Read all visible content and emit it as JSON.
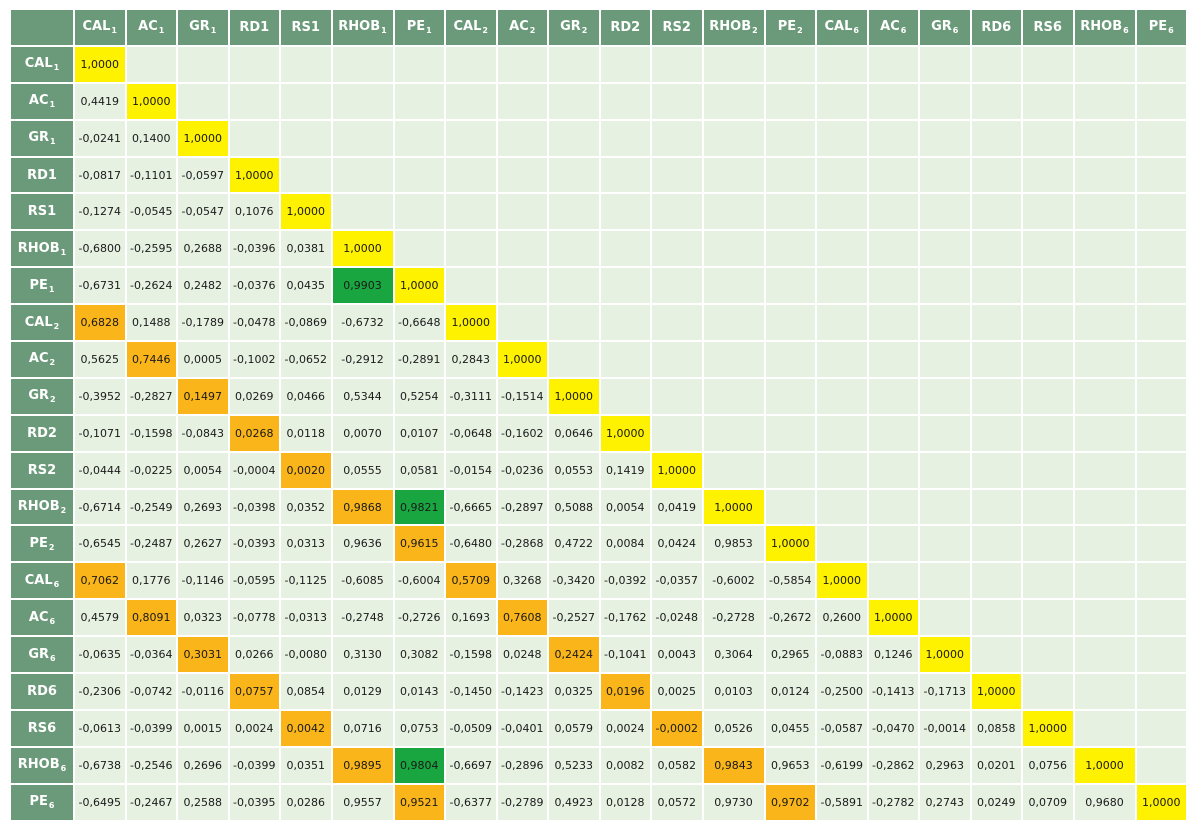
{
  "variables": [
    {
      "base": "CAL",
      "sub": "1"
    },
    {
      "base": "AC",
      "sub": "1"
    },
    {
      "base": "GR",
      "sub": "1"
    },
    {
      "base": "RD1",
      "sub": ""
    },
    {
      "base": "RS1",
      "sub": ""
    },
    {
      "base": "RHOB",
      "sub": "1"
    },
    {
      "base": "PE",
      "sub": "1"
    },
    {
      "base": "CAL",
      "sub": "2"
    },
    {
      "base": "AC",
      "sub": "2"
    },
    {
      "base": "GR",
      "sub": "2"
    },
    {
      "base": "RD2",
      "sub": ""
    },
    {
      "base": "RS2",
      "sub": ""
    },
    {
      "base": "RHOB",
      "sub": "2"
    },
    {
      "base": "PE",
      "sub": "2"
    },
    {
      "base": "CAL",
      "sub": "6"
    },
    {
      "base": "AC",
      "sub": "6"
    },
    {
      "base": "GR",
      "sub": "6"
    },
    {
      "base": "RD6",
      "sub": ""
    },
    {
      "base": "RS6",
      "sub": ""
    },
    {
      "base": "RHOB",
      "sub": "6"
    },
    {
      "base": "PE",
      "sub": "6"
    }
  ],
  "highlight_colors": {
    "yellow": "#fff200",
    "orange": "#f9b51a",
    "green": "#19a641"
  },
  "rows": [
    [
      "1,0000"
    ],
    [
      "0,4419",
      "1,0000"
    ],
    [
      "-0,0241",
      "0,1400",
      "1,0000"
    ],
    [
      "-0,0817",
      "-0,1101",
      "-0,0597",
      "1,0000"
    ],
    [
      "-0,1274",
      "-0,0545",
      "-0,0547",
      "0,1076",
      "1,0000"
    ],
    [
      "-0,6800",
      "-0,2595",
      "0,2688",
      "-0,0396",
      "0,0381",
      "1,0000"
    ],
    [
      "-0,6731",
      "-0,2624",
      "0,2482",
      "-0,0376",
      "0,0435",
      "0,9903",
      "1,0000"
    ],
    [
      "0,6828",
      "0,1488",
      "-0,1789",
      "-0,0478",
      "-0,0869",
      "-0,6732",
      "-0,6648",
      "1,0000"
    ],
    [
      "0,5625",
      "0,7446",
      "0,0005",
      "-0,1002",
      "-0,0652",
      "-0,2912",
      "-0,2891",
      "0,2843",
      "1,0000"
    ],
    [
      "-0,3952",
      "-0,2827",
      "0,1497",
      "0,0269",
      "0,0466",
      "0,5344",
      "0,5254",
      "-0,3111",
      "-0,1514",
      "1,0000"
    ],
    [
      "-0,1071",
      "-0,1598",
      "-0,0843",
      "0,0268",
      "0,0118",
      "0,0070",
      "0,0107",
      "-0,0648",
      "-0,1602",
      "0,0646",
      "1,0000"
    ],
    [
      "-0,0444",
      "-0,0225",
      "0,0054",
      "-0,0004",
      "0,0020",
      "0,0555",
      "0,0581",
      "-0,0154",
      "-0,0236",
      "0,0553",
      "0,1419",
      "1,0000"
    ],
    [
      "-0,6714",
      "-0,2549",
      "0,2693",
      "-0,0398",
      "0,0352",
      "0,9868",
      "0,9821",
      "-0,6665",
      "-0,2897",
      "0,5088",
      "0,0054",
      "0,0419",
      "1,0000"
    ],
    [
      "-0,6545",
      "-0,2487",
      "0,2627",
      "-0,0393",
      "0,0313",
      "0,9636",
      "0,9615",
      "-0,6480",
      "-0,2868",
      "0,4722",
      "0,0084",
      "0,0424",
      "0,9853",
      "1,0000"
    ],
    [
      "0,7062",
      "0,1776",
      "-0,1146",
      "-0,0595",
      "-0,1125",
      "-0,6085",
      "-0,6004",
      "0,5709",
      "0,3268",
      "-0,3420",
      "-0,0392",
      "-0,0357",
      "-0,6002",
      "-0,5854",
      "1,0000"
    ],
    [
      "0,4579",
      "0,8091",
      "0,0323",
      "-0,0778",
      "-0,0313",
      "-0,2748",
      "-0,2726",
      "0,1693",
      "0,7608",
      "-0,2527",
      "-0,1762",
      "-0,0248",
      "-0,2728",
      "-0,2672",
      "0,2600",
      "1,0000"
    ],
    [
      "-0,0635",
      "-0,0364",
      "0,3031",
      "0,0266",
      "-0,0080",
      "0,3130",
      "0,3082",
      "-0,1598",
      "0,0248",
      "0,2424",
      "-0,1041",
      "0,0043",
      "0,3064",
      "0,2965",
      "-0,0883",
      "0,1246",
      "1,0000"
    ],
    [
      "-0,2306",
      "-0,0742",
      "-0,0116",
      "0,0757",
      "0,0854",
      "0,0129",
      "0,0143",
      "-0,1450",
      "-0,1423",
      "0,0325",
      "0,0196",
      "0,0025",
      "0,0103",
      "0,0124",
      "-0,2500",
      "-0,1413",
      "-0,1713",
      "1,0000"
    ],
    [
      "-0,0613",
      "-0,0399",
      "0,0015",
      "0,0024",
      "0,0042",
      "0,0716",
      "0,0753",
      "-0,0509",
      "-0,0401",
      "0,0579",
      "0,0024",
      "-0,0002",
      "0,0526",
      "0,0455",
      "-0,0587",
      "-0,0470",
      "-0,0014",
      "0,0858",
      "1,0000"
    ],
    [
      "-0,6738",
      "-0,2546",
      "0,2696",
      "-0,0399",
      "0,0351",
      "0,9895",
      "0,9804",
      "-0,6697",
      "-0,2896",
      "0,5233",
      "0,0082",
      "0,0582",
      "0,9843",
      "0,9653",
      "-0,6199",
      "-0,2862",
      "0,2963",
      "0,0201",
      "0,0756",
      "1,0000"
    ],
    [
      "-0,6495",
      "-0,2467",
      "0,2588",
      "-0,0395",
      "0,0286",
      "0,9557",
      "0,9521",
      "-0,6377",
      "-0,2789",
      "0,4923",
      "0,0128",
      "0,0572",
      "0,9730",
      "0,9702",
      "-0,5891",
      "-0,2782",
      "0,2743",
      "0,0249",
      "0,0709",
      "0,9680",
      "1,0000"
    ]
  ],
  "highlights": {
    "orange": [
      [
        7,
        0
      ],
      [
        8,
        1
      ],
      [
        9,
        2
      ],
      [
        10,
        3
      ],
      [
        11,
        4
      ],
      [
        12,
        5
      ],
      [
        13,
        6
      ],
      [
        14,
        0
      ],
      [
        14,
        7
      ],
      [
        15,
        1
      ],
      [
        15,
        8
      ],
      [
        16,
        2
      ],
      [
        16,
        9
      ],
      [
        17,
        3
      ],
      [
        17,
        10
      ],
      [
        18,
        4
      ],
      [
        18,
        11
      ],
      [
        19,
        5
      ],
      [
        19,
        12
      ],
      [
        20,
        6
      ],
      [
        20,
        13
      ]
    ],
    "green": [
      [
        6,
        5
      ],
      [
        12,
        6
      ],
      [
        19,
        6
      ]
    ]
  }
}
